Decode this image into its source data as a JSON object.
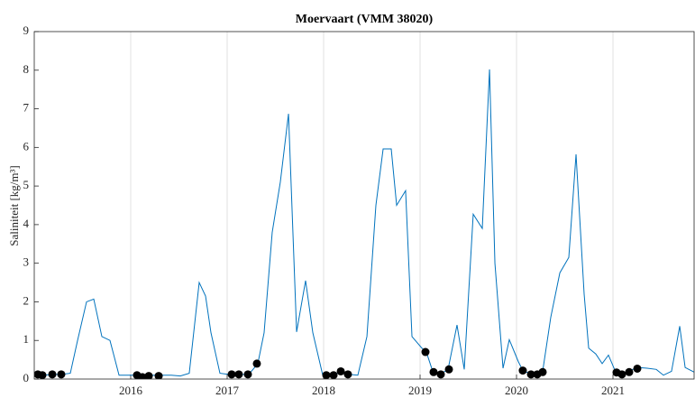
{
  "chart_data": {
    "type": "line",
    "title": "Moervaart (VMM 38020)",
    "y_label": "Saliniteit [kg/m³]",
    "xlim": [
      2015,
      2021.841
    ],
    "xticks": [
      2016,
      2017,
      2018,
      2019,
      2020,
      2021
    ],
    "ylim": [
      0,
      9
    ],
    "yticks": [
      0,
      1,
      2,
      3,
      4,
      5,
      6,
      7,
      8,
      9
    ],
    "grid": "x",
    "series": [
      {
        "mode": "line",
        "color": "#0072bd",
        "x": [
          2015,
          2015.093,
          2015.187,
          2015.28,
          2015.374,
          2015.449,
          2015.542,
          2015.617,
          2015.701,
          2015.785,
          2015.879,
          2015.972,
          2016.047,
          2016.14,
          2016.234,
          2016.327,
          2016.421,
          2016.514,
          2016.607,
          2016.71,
          2016.776,
          2016.832,
          2016.925,
          2017.019,
          2017.112,
          2017.224,
          2017.318,
          2017.383,
          2017.467,
          2017.551,
          2017.636,
          2017.72,
          2017.813,
          2017.888,
          2017.991,
          2018.084,
          2018.178,
          2018.271,
          2018.355,
          2018.449,
          2018.542,
          2018.617,
          2018.701,
          2018.757,
          2018.85,
          2018.916,
          2019.019,
          2019.065,
          2019.131,
          2019.206,
          2019.29,
          2019.383,
          2019.458,
          2019.551,
          2019.645,
          2019.72,
          2019.776,
          2019.86,
          2019.925,
          2020.019,
          2020.065,
          2020.159,
          2020.234,
          2020.271,
          2020.355,
          2020.449,
          2020.542,
          2020.617,
          2020.701,
          2020.748,
          2020.822,
          2020.888,
          2020.953,
          2021.028,
          2021.093,
          2021.159,
          2021.252,
          2021.355,
          2021.449,
          2021.523,
          2021.607,
          2021.692,
          2021.748,
          2021.841
        ],
        "values": [
          0.1,
          0.1,
          0.12,
          0.12,
          0.15,
          1.0,
          2.0,
          2.07,
          1.1,
          1.0,
          0.1,
          0.1,
          0.1,
          0.05,
          0.1,
          0.1,
          0.1,
          0.08,
          0.15,
          2.5,
          2.15,
          1.2,
          0.15,
          0.12,
          0.12,
          0.12,
          0.4,
          1.2,
          3.8,
          5.1,
          6.87,
          1.22,
          2.55,
          1.2,
          0.1,
          0.1,
          0.18,
          0.12,
          0.1,
          1.1,
          4.5,
          5.96,
          5.96,
          4.5,
          4.88,
          1.1,
          0.8,
          0.7,
          0.2,
          0.12,
          0.25,
          1.4,
          0.25,
          4.27,
          3.9,
          8.02,
          3.0,
          0.28,
          1.02,
          0.45,
          0.22,
          0.12,
          0.15,
          0.2,
          1.6,
          2.75,
          3.15,
          5.82,
          2.2,
          0.8,
          0.65,
          0.4,
          0.62,
          0.18,
          0.1,
          0.2,
          0.3,
          0.28,
          0.25,
          0.1,
          0.2,
          1.37,
          0.3,
          0.18
        ]
      },
      {
        "mode": "markers",
        "color": "#000000",
        "x": [
          2015.037,
          2015.084,
          2015.187,
          2015.28,
          2016.065,
          2016.121,
          2016.187,
          2016.29,
          2017.047,
          2017.121,
          2017.215,
          2017.308,
          2018.028,
          2018.103,
          2018.178,
          2018.252,
          2019.056,
          2019.14,
          2019.215,
          2019.299,
          2020.065,
          2020.15,
          2020.215,
          2020.271,
          2021.037,
          2021.093,
          2021.168,
          2021.252
        ],
        "values": [
          0.12,
          0.1,
          0.12,
          0.12,
          0.1,
          0.05,
          0.08,
          0.08,
          0.12,
          0.12,
          0.12,
          0.4,
          0.1,
          0.1,
          0.2,
          0.12,
          0.7,
          0.18,
          0.12,
          0.25,
          0.22,
          0.12,
          0.12,
          0.18,
          0.17,
          0.12,
          0.18,
          0.27
        ]
      }
    ]
  }
}
